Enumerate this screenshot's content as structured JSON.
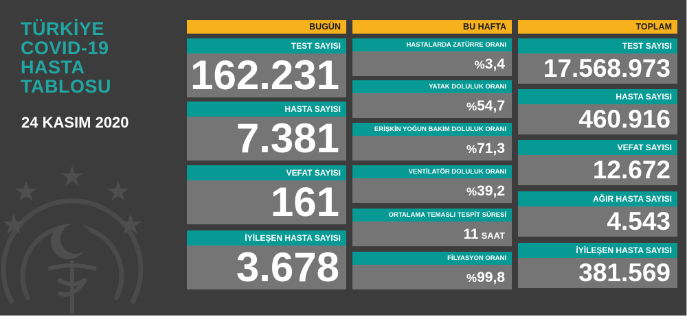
{
  "title_lines": [
    "TÜRKİYE",
    "COVID-19",
    "HASTA",
    "TABLOSU"
  ],
  "date": "24 KASIM 2020",
  "colors": {
    "background": "#3c3c3c",
    "header": "#f7b11c",
    "label": "#079a94",
    "value_box": "#757575",
    "title": "#20a7a3"
  },
  "bugun": {
    "header": "BUGÜN",
    "items": [
      {
        "label": "TEST SAYISI",
        "value": "162.231"
      },
      {
        "label": "HASTA SAYISI",
        "value": "7.381"
      },
      {
        "label": "VEFAT SAYISI",
        "value": "161"
      },
      {
        "label": "İYİLEŞEN HASTA SAYISI",
        "value": "3.678"
      }
    ]
  },
  "bu_hafta": {
    "header": "BU HAFTA",
    "items": [
      {
        "label": "HASTALARDA ZATÜRRE ORANI",
        "prefix": "%",
        "value": "3,4",
        "unit": ""
      },
      {
        "label": "YATAK DOLULUK ORANI",
        "prefix": "%",
        "value": "54,7",
        "unit": ""
      },
      {
        "label": "ERİŞKİN YOĞUN BAKIM DOLULUK ORANI",
        "prefix": "%",
        "value": "71,3",
        "unit": ""
      },
      {
        "label": "VENTİLATÖR DOLULUK ORANI",
        "prefix": "%",
        "value": "39,2",
        "unit": ""
      },
      {
        "label": "ORTALAMA TEMASLI TESPİT SÜRESİ",
        "prefix": "",
        "value": "11",
        "unit": "SAAT"
      },
      {
        "label": "FİLYASYON ORANI",
        "prefix": "%",
        "value": "99,8",
        "unit": ""
      }
    ]
  },
  "toplam": {
    "header": "TOPLAM",
    "items": [
      {
        "label": "TEST SAYISI",
        "value": "17.568.973"
      },
      {
        "label": "HASTA SAYISI",
        "value": "460.916"
      },
      {
        "label": "VEFAT SAYISI",
        "value": "12.672"
      },
      {
        "label": "AĞIR HASTA SAYISI",
        "value": "4.543"
      },
      {
        "label": "İYİLEŞEN HASTA SAYISI",
        "value": "381.569"
      }
    ]
  }
}
